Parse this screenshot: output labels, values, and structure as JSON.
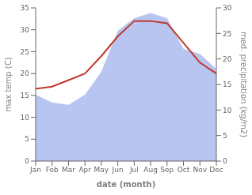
{
  "chart_data": {
    "type": "line",
    "categories": [
      "Jan",
      "Feb",
      "Mar",
      "Apr",
      "May",
      "Jun",
      "Jul",
      "Aug",
      "Sep",
      "Oct",
      "Nov",
      "Dec"
    ],
    "xlabel": "date (month)",
    "ylabel": "max temp (C)",
    "y2label": "med. precipitation (kg/m2)",
    "series": [
      {
        "type": "area",
        "color": "#b8c5f0",
        "axis": "y2",
        "values": [
          13.0,
          11.5,
          11.0,
          13.0,
          17.5,
          25.5,
          28.0,
          29.0,
          28.0,
          22.0,
          21.0,
          18.0
        ]
      },
      {
        "type": "line",
        "color": "#c0392b",
        "values": [
          16.5,
          17.0,
          18.5,
          20.0,
          24.0,
          28.5,
          32.0,
          32.0,
          31.5,
          27.0,
          22.5,
          20.0
        ]
      }
    ],
    "ylim": [
      0,
      35
    ],
    "yticks": [
      0,
      5,
      10,
      15,
      20,
      25,
      30,
      35
    ],
    "y2lim": [
      0,
      30
    ],
    "y2ticks": [
      0,
      5,
      10,
      15,
      20,
      25,
      30
    ],
    "grid": false
  }
}
